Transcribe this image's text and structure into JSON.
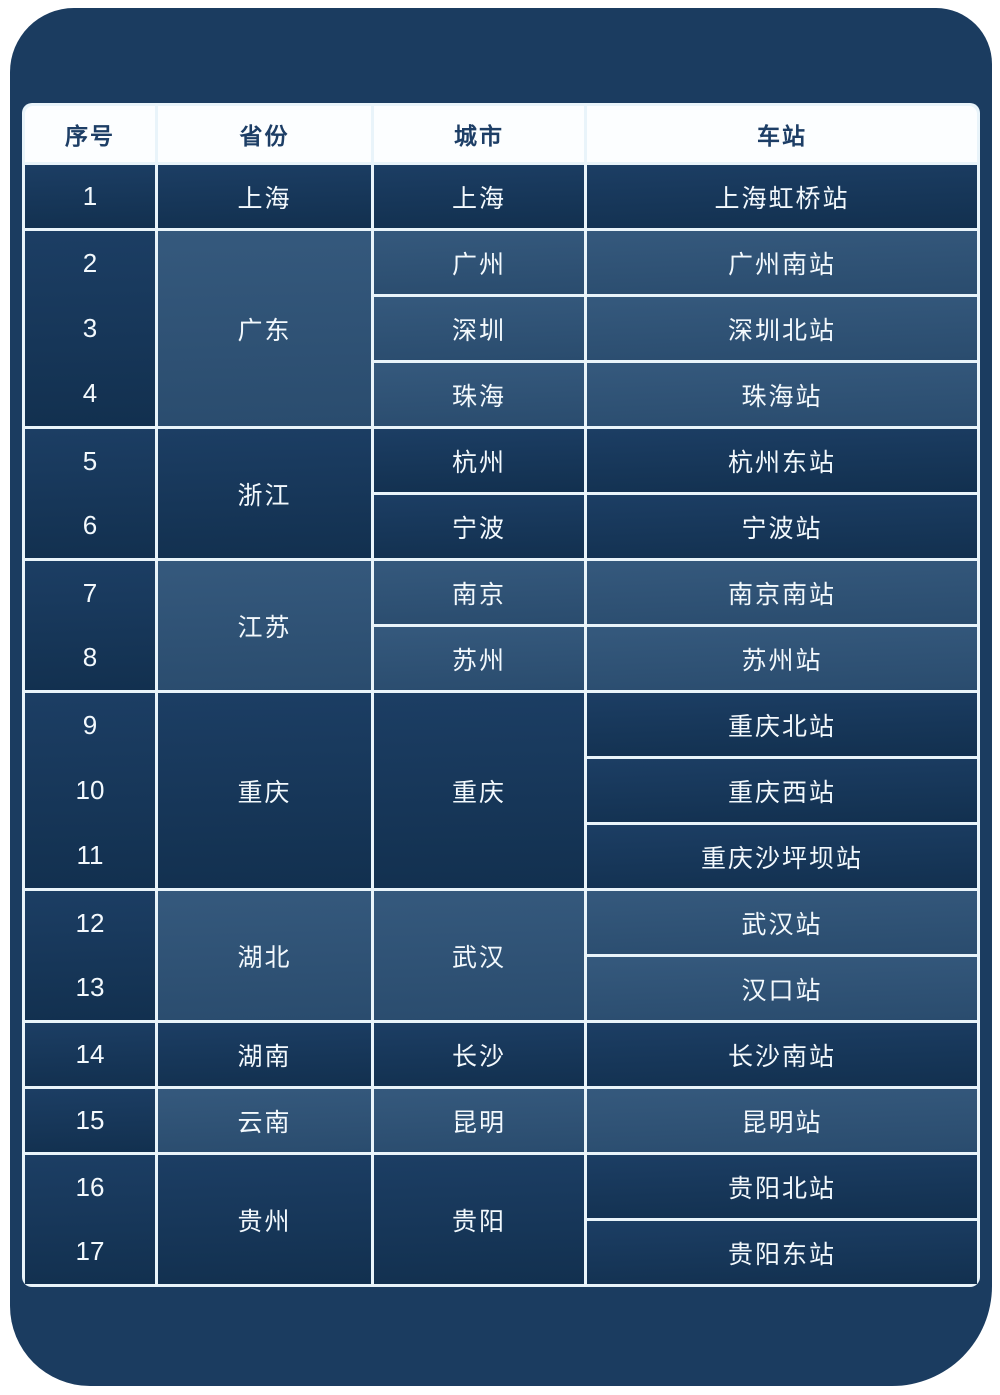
{
  "table": {
    "columns": [
      {
        "key": "seq",
        "label": "序号"
      },
      {
        "key": "province",
        "label": "省份"
      },
      {
        "key": "city",
        "label": "城市"
      },
      {
        "key": "station",
        "label": "车站"
      }
    ],
    "groups": [
      {
        "province": "上海",
        "tone": "dark",
        "numbers": [
          "1"
        ],
        "cities": [
          {
            "name": "上海",
            "stations": [
              "上海虹桥站"
            ]
          }
        ]
      },
      {
        "province": "广东",
        "tone": "light",
        "numbers": [
          "2",
          "3",
          "4"
        ],
        "cities": [
          {
            "name": "广州",
            "stations": [
              "广州南站"
            ]
          },
          {
            "name": "深圳",
            "stations": [
              "深圳北站"
            ]
          },
          {
            "name": "珠海",
            "stations": [
              "珠海站"
            ]
          }
        ]
      },
      {
        "province": "浙江",
        "tone": "dark",
        "numbers": [
          "5",
          "6"
        ],
        "cities": [
          {
            "name": "杭州",
            "stations": [
              "杭州东站"
            ]
          },
          {
            "name": "宁波",
            "stations": [
              "宁波站"
            ]
          }
        ]
      },
      {
        "province": "江苏",
        "tone": "light",
        "numbers": [
          "7",
          "8"
        ],
        "cities": [
          {
            "name": "南京",
            "stations": [
              "南京南站"
            ]
          },
          {
            "name": "苏州",
            "stations": [
              "苏州站"
            ]
          }
        ]
      },
      {
        "province": "重庆",
        "tone": "dark",
        "numbers": [
          "9",
          "10",
          "11"
        ],
        "cities": [
          {
            "name": "重庆",
            "stations": [
              "重庆北站",
              "重庆西站",
              "重庆沙坪坝站"
            ]
          }
        ]
      },
      {
        "province": "湖北",
        "tone": "light",
        "numbers": [
          "12",
          "13"
        ],
        "cities": [
          {
            "name": "武汉",
            "stations": [
              "武汉站",
              "汉口站"
            ]
          }
        ]
      },
      {
        "province": "湖南",
        "tone": "dark",
        "numbers": [
          "14"
        ],
        "cities": [
          {
            "name": "长沙",
            "stations": [
              "长沙南站"
            ]
          }
        ]
      },
      {
        "province": "云南",
        "tone": "light",
        "numbers": [
          "15"
        ],
        "cities": [
          {
            "name": "昆明",
            "stations": [
              "昆明站"
            ]
          }
        ]
      },
      {
        "province": "贵州",
        "tone": "dark",
        "numbers": [
          "16",
          "17"
        ],
        "cities": [
          {
            "name": "贵阳",
            "stations": [
              "贵阳北站",
              "贵阳东站"
            ]
          }
        ]
      }
    ]
  },
  "colors": {
    "card_background": "#1B3C60",
    "grid_border": "#E9F4FA",
    "header_background": "#FCFEFF",
    "header_text": "#1D3E66",
    "cell_text": "#F3F9FD",
    "group_dark": "#16365B",
    "group_light": "#2F5275"
  }
}
